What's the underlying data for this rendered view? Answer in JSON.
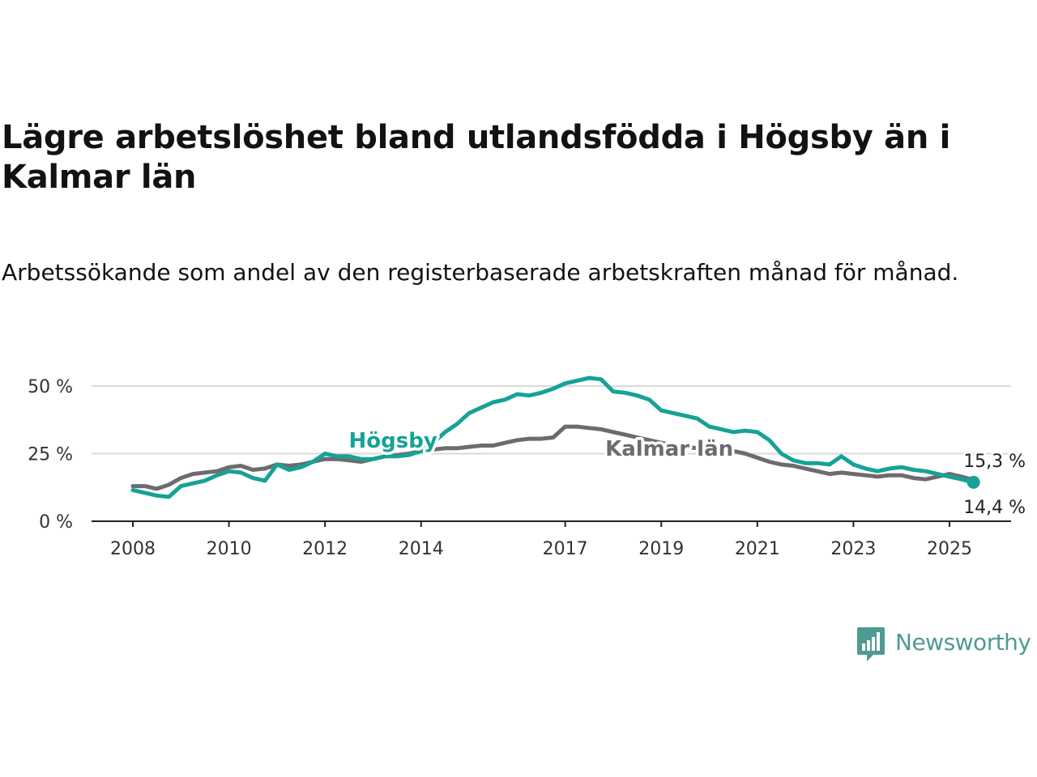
{
  "header": {
    "title": "Lägre arbetslöshet bland utlandsfödda i Högsby än i Kalmar län",
    "subtitle": "Arbetssökande som andel av den registerbaserade arbetskraften månad för månad."
  },
  "brand": {
    "name": "Newsworthy",
    "color": "#4f9a93",
    "icon": "newsworthy-bar-chart-speech-bubble-icon"
  },
  "chart_data": {
    "type": "line",
    "title": "Lägre arbetslöshet bland utlandsfödda i Högsby än i Kalmar län",
    "subtitle": "Arbetssökande som andel av den registerbaserade arbetskraften månad för månad.",
    "xlabel": "",
    "ylabel": "",
    "x_range": [
      "2008-01",
      "2025-07"
    ],
    "xticks": [
      "2008",
      "2010",
      "2012",
      "2014",
      "2017",
      "2019",
      "2021",
      "2023",
      "2025"
    ],
    "ylim": [
      0,
      55
    ],
    "yticks": [
      {
        "value": 0,
        "label": "0 %"
      },
      {
        "value": 25,
        "label": "25 %"
      },
      {
        "value": 50,
        "label": "50 %"
      }
    ],
    "grid": true,
    "legend": "inline labels on the lines",
    "series": [
      {
        "name": "Högsby",
        "color": "#16a296",
        "label_date": "2013-06",
        "label_value": 30,
        "end_label": "14,4 %",
        "end_value": 14.4,
        "points": [
          [
            "2008-01",
            11.5
          ],
          [
            "2008-04",
            10.5
          ],
          [
            "2008-07",
            9.5
          ],
          [
            "2008-10",
            9.0
          ],
          [
            "2009-01",
            13.0
          ],
          [
            "2009-04",
            14.0
          ],
          [
            "2009-07",
            15.0
          ],
          [
            "2009-10",
            17.0
          ],
          [
            "2010-01",
            18.5
          ],
          [
            "2010-04",
            18.0
          ],
          [
            "2010-07",
            16.0
          ],
          [
            "2010-10",
            15.0
          ],
          [
            "2011-01",
            21.0
          ],
          [
            "2011-04",
            19.0
          ],
          [
            "2011-07",
            20.0
          ],
          [
            "2011-10",
            22.0
          ],
          [
            "2012-01",
            25.0
          ],
          [
            "2012-04",
            24.0
          ],
          [
            "2012-07",
            24.0
          ],
          [
            "2012-10",
            23.0
          ],
          [
            "2013-01",
            23.0
          ],
          [
            "2013-04",
            24.0
          ],
          [
            "2013-07",
            24.0
          ],
          [
            "2013-10",
            24.5
          ],
          [
            "2014-01",
            26.0
          ],
          [
            "2014-04",
            29.0
          ],
          [
            "2014-07",
            33.0
          ],
          [
            "2014-10",
            36.0
          ],
          [
            "2015-01",
            40.0
          ],
          [
            "2015-04",
            42.0
          ],
          [
            "2015-07",
            44.0
          ],
          [
            "2015-10",
            45.0
          ],
          [
            "2016-01",
            47.0
          ],
          [
            "2016-04",
            46.5
          ],
          [
            "2016-07",
            47.5
          ],
          [
            "2016-10",
            49.0
          ],
          [
            "2017-01",
            51.0
          ],
          [
            "2017-04",
            52.0
          ],
          [
            "2017-07",
            53.0
          ],
          [
            "2017-10",
            52.5
          ],
          [
            "2018-01",
            48.0
          ],
          [
            "2018-04",
            47.5
          ],
          [
            "2018-07",
            46.5
          ],
          [
            "2018-10",
            45.0
          ],
          [
            "2019-01",
            41.0
          ],
          [
            "2019-04",
            40.0
          ],
          [
            "2019-07",
            39.0
          ],
          [
            "2019-10",
            38.0
          ],
          [
            "2020-01",
            35.0
          ],
          [
            "2020-04",
            34.0
          ],
          [
            "2020-07",
            33.0
          ],
          [
            "2020-10",
            33.5
          ],
          [
            "2021-01",
            33.0
          ],
          [
            "2021-04",
            30.0
          ],
          [
            "2021-07",
            25.0
          ],
          [
            "2021-10",
            22.5
          ],
          [
            "2022-01",
            21.5
          ],
          [
            "2022-04",
            21.5
          ],
          [
            "2022-07",
            21.0
          ],
          [
            "2022-10",
            24.0
          ],
          [
            "2023-01",
            21.0
          ],
          [
            "2023-04",
            19.5
          ],
          [
            "2023-07",
            18.5
          ],
          [
            "2023-10",
            19.5
          ],
          [
            "2024-01",
            20.0
          ],
          [
            "2024-04",
            19.0
          ],
          [
            "2024-07",
            18.5
          ],
          [
            "2024-10",
            17.5
          ],
          [
            "2025-01",
            16.5
          ],
          [
            "2025-04",
            15.5
          ],
          [
            "2025-07",
            14.4
          ]
        ]
      },
      {
        "name": "Kalmar län",
        "color": "#6e6a70",
        "label_date": "2019-03",
        "label_value": 27,
        "end_label": "15,3 %",
        "end_value": 15.3,
        "points": [
          [
            "2008-01",
            13.0
          ],
          [
            "2008-04",
            13.0
          ],
          [
            "2008-07",
            12.0
          ],
          [
            "2008-10",
            13.5
          ],
          [
            "2009-01",
            16.0
          ],
          [
            "2009-04",
            17.5
          ],
          [
            "2009-07",
            18.0
          ],
          [
            "2009-10",
            18.5
          ],
          [
            "2010-01",
            20.0
          ],
          [
            "2010-04",
            20.5
          ],
          [
            "2010-07",
            19.0
          ],
          [
            "2010-10",
            19.5
          ],
          [
            "2011-01",
            21.0
          ],
          [
            "2011-04",
            20.5
          ],
          [
            "2011-07",
            21.0
          ],
          [
            "2011-10",
            22.0
          ],
          [
            "2012-01",
            23.0
          ],
          [
            "2012-04",
            23.0
          ],
          [
            "2012-07",
            22.5
          ],
          [
            "2012-10",
            22.0
          ],
          [
            "2013-01",
            23.0
          ],
          [
            "2013-04",
            24.0
          ],
          [
            "2013-07",
            24.5
          ],
          [
            "2013-10",
            25.0
          ],
          [
            "2014-01",
            26.0
          ],
          [
            "2014-04",
            26.5
          ],
          [
            "2014-07",
            27.0
          ],
          [
            "2014-10",
            27.0
          ],
          [
            "2015-01",
            27.5
          ],
          [
            "2015-04",
            28.0
          ],
          [
            "2015-07",
            28.0
          ],
          [
            "2015-10",
            29.0
          ],
          [
            "2016-01",
            30.0
          ],
          [
            "2016-04",
            30.5
          ],
          [
            "2016-07",
            30.5
          ],
          [
            "2016-10",
            31.0
          ],
          [
            "2017-01",
            35.0
          ],
          [
            "2017-04",
            35.0
          ],
          [
            "2017-07",
            34.5
          ],
          [
            "2017-10",
            34.0
          ],
          [
            "2018-01",
            33.0
          ],
          [
            "2018-04",
            32.0
          ],
          [
            "2018-07",
            31.0
          ],
          [
            "2018-10",
            30.0
          ],
          [
            "2019-01",
            29.0
          ],
          [
            "2019-04",
            28.0
          ],
          [
            "2019-07",
            27.5
          ],
          [
            "2019-10",
            27.0
          ],
          [
            "2020-01",
            26.5
          ],
          [
            "2020-04",
            26.5
          ],
          [
            "2020-07",
            26.0
          ],
          [
            "2020-10",
            25.0
          ],
          [
            "2021-01",
            23.5
          ],
          [
            "2021-04",
            22.0
          ],
          [
            "2021-07",
            21.0
          ],
          [
            "2021-10",
            20.5
          ],
          [
            "2022-01",
            19.5
          ],
          [
            "2022-04",
            18.5
          ],
          [
            "2022-07",
            17.5
          ],
          [
            "2022-10",
            18.0
          ],
          [
            "2023-01",
            17.5
          ],
          [
            "2023-04",
            17.0
          ],
          [
            "2023-07",
            16.5
          ],
          [
            "2023-10",
            17.0
          ],
          [
            "2024-01",
            17.0
          ],
          [
            "2024-04",
            16.0
          ],
          [
            "2024-07",
            15.5
          ],
          [
            "2024-10",
            16.5
          ],
          [
            "2025-01",
            17.5
          ],
          [
            "2025-04",
            16.5
          ],
          [
            "2025-07",
            15.3
          ]
        ]
      }
    ]
  }
}
